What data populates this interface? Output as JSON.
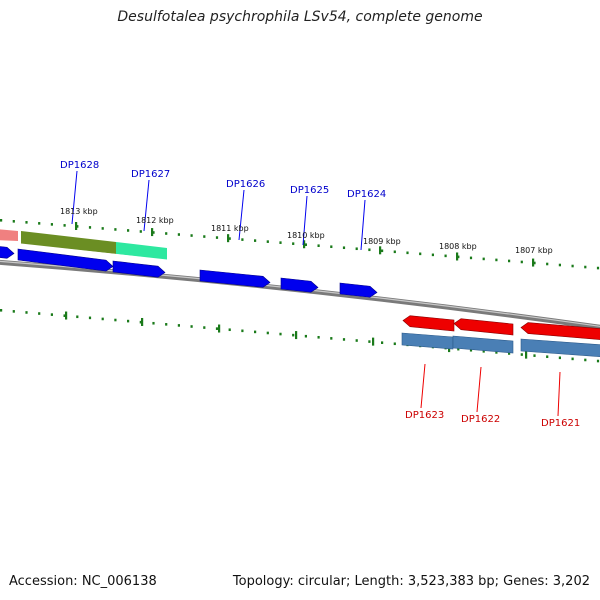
{
  "title": "Desulfotalea psychrophila LSv54, complete genome",
  "footer": {
    "accession": "Accession: NC_006138",
    "summary": "Topology: circular; Length: 3,523,383 bp; Genes: 3,202"
  },
  "colors": {
    "forward_gene": "#0000ee",
    "reverse_gene": "#ee0000",
    "forward_label": "#0000cc",
    "reverse_label": "#cc0000",
    "reverse_steel": "#4a7fb5",
    "tick": "#1a7a1a",
    "backbone": "#7a7a7a",
    "olive_block": "#6b8e23",
    "green_block": "#2ee8a0",
    "salmon_block": "#f08080"
  },
  "kbp_ticks": [
    "1813 kbp",
    "1812 kbp",
    "1811 kbp",
    "1810 kbp",
    "1809 kbp",
    "1808 kbp",
    "1807 kbp"
  ],
  "forward_genes": [
    "DP1628",
    "DP1627",
    "DP1626",
    "DP1625",
    "DP1624"
  ],
  "reverse_genes": [
    "DP1623",
    "DP1622",
    "DP1621"
  ]
}
